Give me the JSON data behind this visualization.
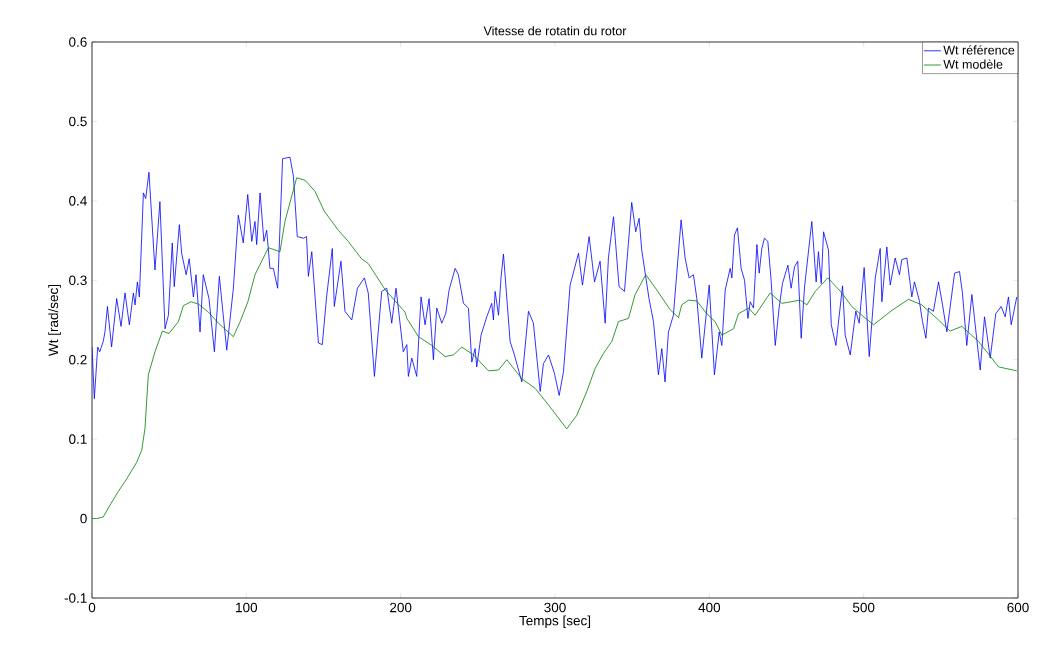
{
  "chart_data": {
    "type": "line",
    "title": "Vitesse de rotatin du rotor",
    "xlabel": "Temps [sec]",
    "ylabel": "Wt [rad/sec]",
    "xlim": [
      0,
      600
    ],
    "ylim": [
      -0.1,
      0.6
    ],
    "xticks": [
      0,
      100,
      200,
      300,
      400,
      500,
      600
    ],
    "yticks": [
      -0.1,
      0,
      0.1,
      0.2,
      0.3,
      0.4,
      0.5,
      0.6
    ],
    "grid": false,
    "legend": "top right",
    "marker": "none",
    "line_style": "solid",
    "series": [
      {
        "name": "Wt référence",
        "color": "#0000ff",
        "x": [
          0,
          1.5,
          3.7,
          5,
          7.3,
          8.4,
          10,
          12.7,
          16,
          18.8,
          21.4,
          24.2,
          26.8,
          27.9,
          29.4,
          30.7,
          33.3,
          34.8,
          36.9,
          40.8,
          44,
          47.3,
          49.5,
          52,
          53.3,
          56.6,
          58.1,
          61,
          63,
          65.7,
          67.4,
          70,
          72.1,
          75.8,
          79.3,
          82.5,
          87.3,
          91.6,
          94.8,
          98,
          100.9,
          103.5,
          105.6,
          106.7,
          108.9,
          111.4,
          113.2,
          115.3,
          117.5,
          120.3,
          123.5,
          128.3,
          130.5,
          133,
          137,
          139,
          140.2,
          142.4,
          146.7,
          149.2,
          152,
          155.7,
          157,
          161.3,
          163.9,
          168.3,
          172,
          176.5,
          179,
          183,
          187.7,
          191,
          194.2,
          197,
          201.7,
          204,
          205,
          207.2,
          210.4,
          213.2,
          215.8,
          218.4,
          221.2,
          223.4,
          226.6,
          229.2,
          231.4,
          235.3,
          237.4,
          240.7,
          243.9,
          246.1,
          248.2,
          249.3,
          252.1,
          255.8,
          259,
          260.1,
          261.2,
          263.4,
          265.1,
          266.6,
          270.9,
          273.7,
          278.5,
          282.8,
          286,
          290.4,
          292.5,
          295.8,
          299.6,
          302.7,
          305.5,
          309.8,
          315.2,
          317.8,
          322.1,
          325.6,
          329.2,
          332.5,
          334.6,
          337.9,
          341.5,
          345,
          347.2,
          349.7,
          352.3,
          354.5,
          356.2,
          360.9,
          363.8,
          367,
          369.2,
          371.3,
          373.5,
          376.7,
          381.7,
          384.3,
          386.9,
          389.7,
          391.9,
          395.1,
          399.9,
          403.3,
          406.4,
          408.1,
          410.3,
          413.5,
          414.6,
          416.3,
          418.2,
          420.6,
          422.8,
          425,
          426.5,
          428.6,
          430.8,
          432.3,
          434,
          435.7,
          437.9,
          440.1,
          442.7,
          445.2,
          447.4,
          450.9,
          453,
          455.2,
          457.3,
          459.5,
          461.7,
          466.4,
          469.2,
          470.7,
          472.5,
          474,
          477.2,
          479,
          482,
          486.3,
          488,
          491.3,
          494.9,
          497.1,
          500.3,
          503.6,
          507.5,
          510.7,
          511.8,
          515,
          517.2,
          520.4,
          523.2,
          524.7,
          528,
          531.2,
          532.9,
          536,
          538.1,
          540.3,
          542,
          545.2,
          548.5,
          551.1,
          553.9,
          558.9,
          562.1,
          564,
          566.8,
          570.1,
          571.8,
          575.5,
          578.3,
          582,
          585.6,
          589.1,
          591.7,
          593.8,
          595.6,
          599.2
        ],
        "values": [
          0.216,
          0.151,
          0.216,
          0.21,
          0.223,
          0.235,
          0.267,
          0.216,
          0.277,
          0.242,
          0.284,
          0.244,
          0.284,
          0.269,
          0.298,
          0.279,
          0.41,
          0.403,
          0.436,
          0.313,
          0.399,
          0.239,
          0.256,
          0.347,
          0.292,
          0.37,
          0.334,
          0.307,
          0.327,
          0.279,
          0.307,
          0.235,
          0.307,
          0.277,
          0.21,
          0.305,
          0.212,
          0.29,
          0.382,
          0.347,
          0.408,
          0.349,
          0.374,
          0.345,
          0.41,
          0.349,
          0.363,
          0.315,
          0.315,
          0.29,
          0.453,
          0.455,
          0.431,
          0.355,
          0.353,
          0.355,
          0.305,
          0.336,
          0.221,
          0.219,
          0.279,
          0.34,
          0.267,
          0.324,
          0.261,
          0.25,
          0.29,
          0.303,
          0.284,
          0.179,
          0.286,
          0.29,
          0.246,
          0.29,
          0.21,
          0.219,
          0.179,
          0.202,
          0.179,
          0.279,
          0.244,
          0.277,
          0.2,
          0.265,
          0.246,
          0.258,
          0.288,
          0.315,
          0.307,
          0.271,
          0.265,
          0.197,
          0.214,
          0.191,
          0.231,
          0.254,
          0.271,
          0.25,
          0.286,
          0.256,
          0.305,
          0.333,
          0.223,
          0.206,
          0.172,
          0.261,
          0.246,
          0.16,
          0.195,
          0.206,
          0.183,
          0.155,
          0.185,
          0.294,
          0.334,
          0.294,
          0.355,
          0.298,
          0.324,
          0.246,
          0.328,
          0.38,
          0.292,
          0.286,
          0.338,
          0.398,
          0.361,
          0.378,
          0.338,
          0.277,
          0.248,
          0.181,
          0.214,
          0.172,
          0.235,
          0.256,
          0.376,
          0.328,
          0.303,
          0.307,
          0.277,
          0.202,
          0.294,
          0.181,
          0.235,
          0.218,
          0.288,
          0.315,
          0.303,
          0.357,
          0.366,
          0.315,
          0.3,
          0.252,
          0.273,
          0.265,
          0.345,
          0.309,
          0.34,
          0.353,
          0.349,
          0.298,
          0.218,
          0.265,
          0.296,
          0.319,
          0.29,
          0.317,
          0.324,
          0.227,
          0.292,
          0.374,
          0.298,
          0.336,
          0.296,
          0.361,
          0.338,
          0.244,
          0.218,
          0.293,
          0.231,
          0.206,
          0.261,
          0.246,
          0.316,
          0.204,
          0.303,
          0.34,
          0.273,
          0.342,
          0.294,
          0.328,
          0.307,
          0.326,
          0.328,
          0.279,
          0.298,
          0.275,
          0.248,
          0.227,
          0.265,
          0.261,
          0.298,
          0.269,
          0.235,
          0.309,
          0.311,
          0.284,
          0.218,
          0.282,
          0.252,
          0.187,
          0.254,
          0.202,
          0.258,
          0.267,
          0.254,
          0.279,
          0.244,
          0.279
        ]
      },
      {
        "name": "Wt modèle",
        "color": "#008000",
        "x": [
          0,
          3,
          7.3,
          11.7,
          17,
          22.5,
          29,
          32.2,
          34.3,
          36.5,
          40.8,
          45.6,
          49.9,
          56,
          59.2,
          64.1,
          68.9,
          75.4,
          81.9,
          91.6,
          96,
          101,
          105.6,
          114.3,
          121.8,
          125,
          132.6,
          138,
          144.5,
          150.5,
          159.6,
          166,
          174.7,
          179,
          190,
          202.8,
          204,
          211.5,
          220.2,
          228.8,
          234.2,
          239.6,
          247.2,
          256.9,
          263.4,
          268.8,
          278.5,
          287.1,
          295.8,
          307.6,
          314.1,
          320.6,
          326,
          331.4,
          336.8,
          341.1,
          347.6,
          351.9,
          358.8,
          365.9,
          374.6,
          380,
          382.1,
          386.5,
          391.9,
          398.3,
          403.7,
          408.1,
          415.7,
          418.9,
          425.4,
          429.7,
          439.4,
          447,
          458.9,
          463.2,
          468.6,
          476.8,
          485.9,
          492.3,
          498.8,
          506.4,
          518.2,
          529,
          537.7,
          548.5,
          556,
          563.6,
          574.4,
          587.4,
          599.2
        ],
        "values": [
          0,
          0,
          0.002,
          0.017,
          0.034,
          0.05,
          0.071,
          0.086,
          0.113,
          0.181,
          0.21,
          0.236,
          0.233,
          0.248,
          0.268,
          0.273,
          0.27,
          0.26,
          0.246,
          0.229,
          0.248,
          0.273,
          0.307,
          0.341,
          0.336,
          0.374,
          0.429,
          0.426,
          0.412,
          0.387,
          0.363,
          0.349,
          0.327,
          0.321,
          0.288,
          0.26,
          0.252,
          0.229,
          0.218,
          0.204,
          0.206,
          0.216,
          0.206,
          0.186,
          0.187,
          0.2,
          0.176,
          0.164,
          0.143,
          0.113,
          0.13,
          0.16,
          0.189,
          0.208,
          0.223,
          0.248,
          0.252,
          0.282,
          0.307,
          0.288,
          0.263,
          0.253,
          0.269,
          0.275,
          0.274,
          0.258,
          0.248,
          0.231,
          0.239,
          0.258,
          0.265,
          0.256,
          0.284,
          0.271,
          0.275,
          0.269,
          0.286,
          0.303,
          0.284,
          0.267,
          0.256,
          0.244,
          0.262,
          0.276,
          0.269,
          0.25,
          0.236,
          0.242,
          0.223,
          0.191,
          0.186
        ]
      }
    ]
  }
}
